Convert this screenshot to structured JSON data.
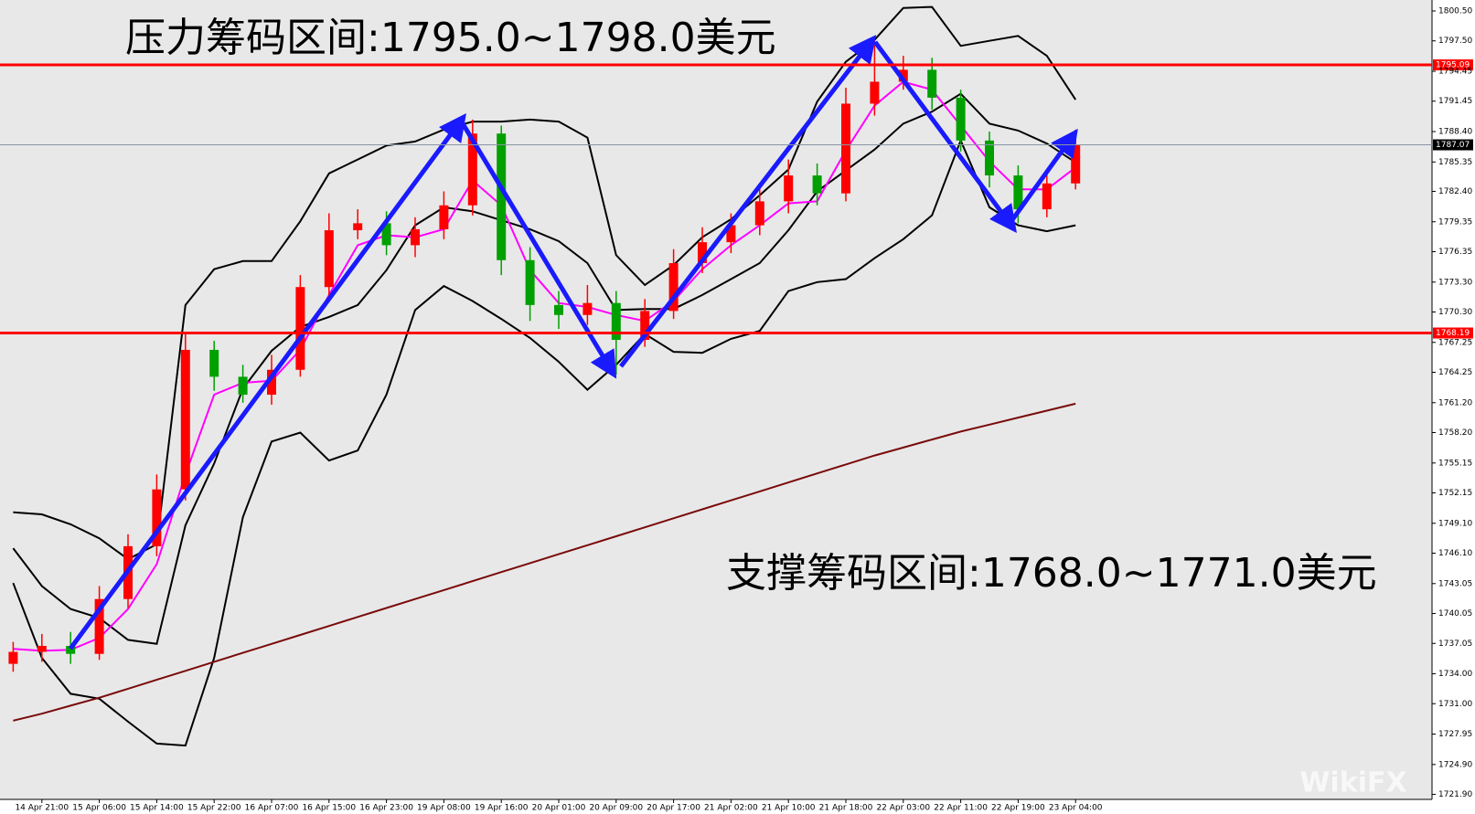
{
  "chart_data": {
    "type": "candlestick",
    "annotations": [
      "压力筹码区间:1795.0~1798.0美元",
      "支撑筹码区间:1768.0~1771.0美元"
    ],
    "watermark": "WikiFX",
    "categories": [
      null,
      "14 Apr 21:00",
      null,
      "15 Apr 06:00",
      null,
      "15 Apr 14:00",
      null,
      "15 Apr 22:00",
      null,
      "16 Apr 07:00",
      null,
      "16 Apr 15:00",
      null,
      "16 Apr 23:00",
      null,
      "19 Apr 08:00",
      null,
      "19 Apr 16:00",
      null,
      "20 Apr 01:00",
      null,
      "20 Apr 09:00",
      null,
      "20 Apr 17:00",
      null,
      "21 Apr 02:00",
      null,
      "21 Apr 10:00",
      null,
      "21 Apr 18:00",
      null,
      "22 Apr 03:00",
      null,
      "22 Apr 11:00",
      null,
      "22 Apr 19:00",
      null,
      "23 Apr 04:00"
    ],
    "open": [
      1735.0,
      1736.2,
      1736.8,
      1736.0,
      1741.5,
      1746.8,
      1752.5,
      1766.5,
      1763.8,
      1762.0,
      1764.5,
      1772.8,
      1778.5,
      1779.2,
      1777.0,
      1778.6,
      1781.0,
      1788.2,
      1775.5,
      1771.0,
      1770.0,
      1771.2,
      1767.5,
      1770.4,
      1775.2,
      1777.3,
      1779.0,
      1781.4,
      1784.0,
      1782.2,
      1791.2,
      1793.4,
      1794.6,
      1791.8,
      1787.5,
      1784.0,
      1780.6,
      1783.2
    ],
    "high": [
      1737.2,
      1738.0,
      1738.2,
      1742.8,
      1748.0,
      1754.0,
      1768.2,
      1767.4,
      1765.0,
      1766.0,
      1774.0,
      1780.2,
      1780.6,
      1780.4,
      1779.8,
      1782.4,
      1789.6,
      1789.0,
      1776.8,
      1772.4,
      1773.0,
      1772.4,
      1771.6,
      1776.6,
      1778.8,
      1780.2,
      1782.8,
      1785.6,
      1785.2,
      1792.8,
      1797.5,
      1796.0,
      1795.8,
      1792.6,
      1788.4,
      1785.0,
      1784.4,
      1788.6
    ],
    "low": [
      1734.2,
      1735.2,
      1735.0,
      1735.4,
      1740.6,
      1745.8,
      1751.4,
      1762.4,
      1761.2,
      1761.0,
      1763.8,
      1771.6,
      1777.6,
      1776.0,
      1775.8,
      1777.6,
      1780.0,
      1774.0,
      1769.4,
      1768.6,
      1769.0,
      1764.0,
      1766.8,
      1769.6,
      1774.2,
      1776.2,
      1778.0,
      1780.2,
      1781.0,
      1781.4,
      1790.0,
      1792.6,
      1790.6,
      1786.4,
      1782.8,
      1779.2,
      1779.8,
      1782.6
    ],
    "close": [
      1736.2,
      1736.8,
      1736.0,
      1741.5,
      1746.8,
      1752.5,
      1766.5,
      1763.8,
      1762.0,
      1764.5,
      1772.8,
      1778.5,
      1779.2,
      1777.0,
      1778.6,
      1781.0,
      1788.2,
      1775.5,
      1771.0,
      1770.0,
      1771.2,
      1767.5,
      1770.4,
      1775.2,
      1777.3,
      1779.0,
      1781.4,
      1784.0,
      1782.2,
      1791.2,
      1793.4,
      1794.6,
      1791.8,
      1787.5,
      1784.0,
      1780.6,
      1783.2,
      1787.1
    ],
    "up_color": "#ff0000",
    "down_color": "#00a000",
    "lines": [
      {
        "color": "#000000",
        "values": [
          1750.2,
          1750.0,
          1749.0,
          1747.6,
          1745.5,
          1747.0,
          1771.0,
          1774.6,
          1775.4,
          1775.4,
          1779.4,
          1784.2,
          1785.6,
          1787.0,
          1787.4,
          1788.6,
          1789.4,
          1789.4,
          1789.6,
          1789.4,
          1787.8,
          1776.0,
          1773.0,
          1775.0,
          1777.8,
          1779.6,
          1782.0,
          1784.6,
          1791.4,
          1795.4,
          1797.6,
          1800.8,
          1800.9,
          1797.0,
          1797.5,
          1798.0,
          1796.0,
          1791.6
        ]
      },
      {
        "color": "#000000",
        "values": [
          1746.6,
          1742.8,
          1740.5,
          1739.6,
          1737.4,
          1737.0,
          1748.9,
          1755.1,
          1762.6,
          1766.4,
          1768.8,
          1769.8,
          1771.0,
          1774.5,
          1779.0,
          1780.8,
          1780.4,
          1779.5,
          1778.6,
          1777.4,
          1775.2,
          1770.5,
          1770.6,
          1770.6,
          1772.0,
          1773.6,
          1775.2,
          1778.5,
          1782.4,
          1784.5,
          1786.6,
          1789.2,
          1790.4,
          1792.2,
          1789.2,
          1788.5,
          1787.2,
          1785.3
        ]
      },
      {
        "color": "#000000",
        "values": [
          1743.1,
          1735.6,
          1732.0,
          1731.5,
          1729.2,
          1727.0,
          1726.8,
          1735.6,
          1749.7,
          1757.3,
          1758.2,
          1755.4,
          1756.4,
          1762.0,
          1770.5,
          1772.9,
          1771.4,
          1769.6,
          1767.7,
          1765.3,
          1762.5,
          1765.0,
          1768.1,
          1766.3,
          1766.2,
          1767.6,
          1768.4,
          1772.4,
          1773.3,
          1773.6,
          1775.7,
          1777.6,
          1780.0,
          1787.5,
          1780.8,
          1779.0,
          1778.4,
          1779.0
        ]
      },
      {
        "color": "#ff00ff",
        "values": [
          1736.5,
          1736.3,
          1736.4,
          1737.6,
          1740.5,
          1745.0,
          1754.0,
          1762.0,
          1763.2,
          1763.4,
          1766.5,
          1772.0,
          1777.0,
          1778.0,
          1777.8,
          1778.6,
          1783.5,
          1781.0,
          1774.5,
          1771.2,
          1770.8,
          1770.0,
          1769.4,
          1771.4,
          1774.6,
          1777.0,
          1779.0,
          1781.2,
          1781.4,
          1786.5,
          1791.0,
          1793.4,
          1792.6,
          1789.0,
          1785.4,
          1782.6,
          1782.6,
          1784.8
        ]
      },
      {
        "color": "#7a0a0a",
        "values": [
          1729.3,
          1730.0,
          1730.8,
          1731.6,
          1732.5,
          1733.4,
          1734.3,
          1735.2,
          1736.1,
          1737.0,
          1737.9,
          1738.8,
          1739.7,
          1740.6,
          1741.5,
          1742.4,
          1743.3,
          1744.2,
          1745.1,
          1746.0,
          1746.9,
          1747.8,
          1748.7,
          1749.6,
          1750.5,
          1751.4,
          1752.3,
          1753.2,
          1754.1,
          1755.0,
          1755.9,
          1756.7,
          1757.5,
          1758.3,
          1759.0,
          1759.7,
          1760.4,
          1761.1
        ]
      }
    ],
    "levels": [
      {
        "value": 1795.09,
        "color": "#ff0000"
      },
      {
        "value": 1768.19,
        "color": "#ff0000"
      },
      {
        "value": 1787.07,
        "color": "#8a96a3"
      }
    ],
    "ylim": [
      1721.4,
      1801.6
    ],
    "yticks": [
      {
        "value": 1800.5,
        "label": "1800.50"
      },
      {
        "value": 1797.5,
        "label": "1797.50"
      },
      {
        "value": 1794.45,
        "label": "1794.45"
      },
      {
        "value": 1791.45,
        "label": "1791.45"
      },
      {
        "value": 1788.4,
        "label": "1788.40"
      },
      {
        "value": 1785.35,
        "label": "1785.35"
      },
      {
        "value": 1782.4,
        "label": "1782.40"
      },
      {
        "value": 1779.35,
        "label": "1779.35"
      },
      {
        "value": 1776.35,
        "label": "1776.35"
      },
      {
        "value": 1773.3,
        "label": "1773.30"
      },
      {
        "value": 1770.3,
        "label": "1770.30"
      },
      {
        "value": 1767.25,
        "label": "1767.25"
      },
      {
        "value": 1764.25,
        "label": "1764.25"
      },
      {
        "value": 1761.2,
        "label": "1761.20"
      },
      {
        "value": 1758.2,
        "label": "1758.20"
      },
      {
        "value": 1755.15,
        "label": "1755.15"
      },
      {
        "value": 1752.15,
        "label": "1752.15"
      },
      {
        "value": 1749.1,
        "label": "1749.10"
      },
      {
        "value": 1746.1,
        "label": "1746.10"
      },
      {
        "value": 1743.05,
        "label": "1743.05"
      },
      {
        "value": 1740.05,
        "label": "1740.05"
      },
      {
        "value": 1737.05,
        "label": "1737.05"
      },
      {
        "value": 1734.0,
        "label": "1734.00"
      },
      {
        "value": 1731.0,
        "label": "1731.00"
      },
      {
        "value": 1727.95,
        "label": "1727.95"
      },
      {
        "value": 1724.9,
        "label": "1724.90"
      },
      {
        "value": 1721.9,
        "label": "1721.90"
      }
    ],
    "grid": false
  }
}
